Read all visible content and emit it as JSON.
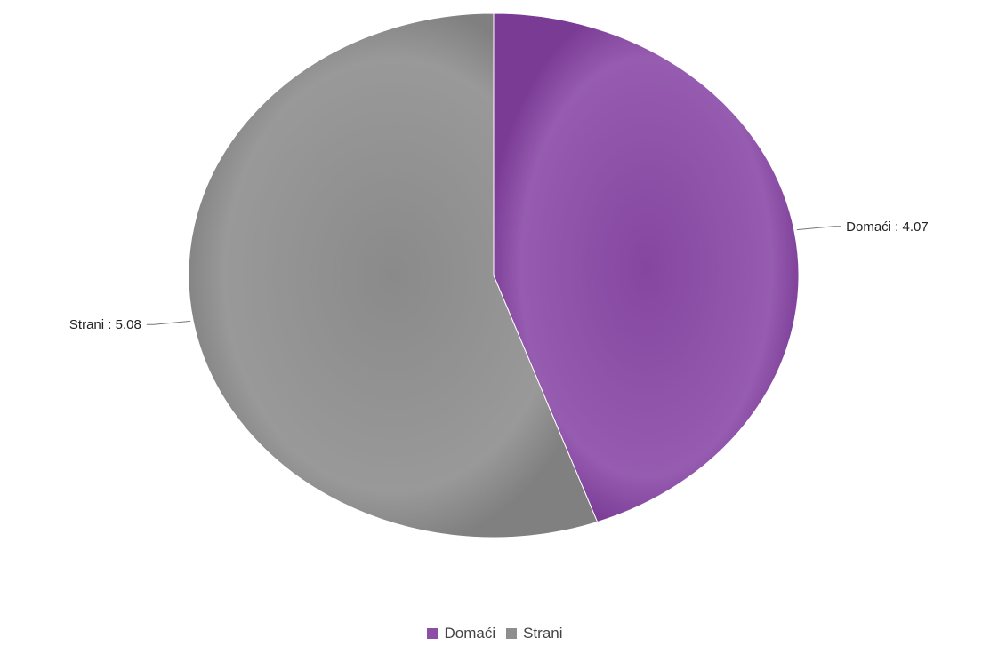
{
  "chart_data": {
    "type": "pie",
    "slices": [
      {
        "name": "Domaći",
        "value": 4.07,
        "label": "Domaći : 4.07",
        "color": "#8d4fa6"
      },
      {
        "name": "Strani",
        "value": 5.08,
        "label": "Strani : 5.08",
        "color": "#8e8e8e"
      }
    ],
    "start_angle_deg": 0,
    "direction": "clockwise",
    "legend_position": "bottom-center"
  },
  "legend": {
    "items": [
      {
        "label": "Domaći",
        "color": "#8d4fa6"
      },
      {
        "label": "Strani",
        "color": "#8e8e8e"
      }
    ]
  }
}
